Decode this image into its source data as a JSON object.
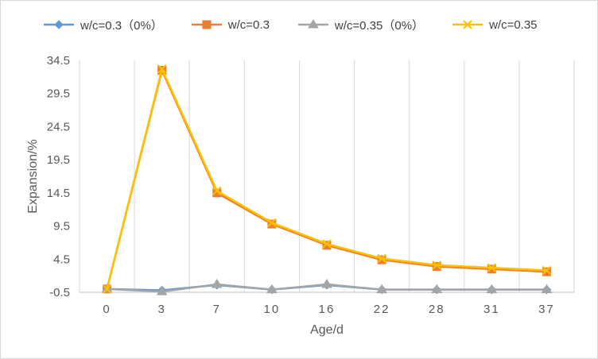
{
  "chart_data": {
    "type": "line",
    "title": "",
    "xlabel": "Age/d",
    "ylabel": "Expansion/%",
    "categories": [
      "0",
      "3",
      "7",
      "10",
      "16",
      "22",
      "28",
      "31",
      "37"
    ],
    "ylim": [
      -0.5,
      34.5
    ],
    "yticks": [
      "-0.5",
      "4.5",
      "9.5",
      "14.5",
      "19.5",
      "24.5",
      "29.5",
      "34.5"
    ],
    "grid": "vertical",
    "legend_position": "top",
    "series": [
      {
        "name": "w/c=0.3（0%）",
        "color": "#5b9bd5",
        "marker": "diamond",
        "values": [
          0.0,
          -0.2,
          0.6,
          -0.1,
          0.6,
          -0.1,
          -0.1,
          -0.1,
          -0.1
        ]
      },
      {
        "name": "w/c=0.3",
        "color": "#ed7d31",
        "marker": "square",
        "values": [
          0.0,
          33.0,
          14.5,
          9.8,
          6.6,
          4.4,
          3.4,
          3.0,
          2.6
        ]
      },
      {
        "name": "w/c=0.35（0%）",
        "color": "#a5a5a5",
        "marker": "triangle",
        "values": [
          0.0,
          -0.4,
          0.7,
          -0.1,
          0.7,
          -0.1,
          -0.1,
          -0.1,
          -0.1
        ]
      },
      {
        "name": "w/c=0.35",
        "color": "#ffc000",
        "marker": "x",
        "values": [
          0.0,
          33.2,
          14.8,
          10.0,
          6.8,
          4.6,
          3.6,
          3.2,
          2.8
        ]
      }
    ]
  }
}
